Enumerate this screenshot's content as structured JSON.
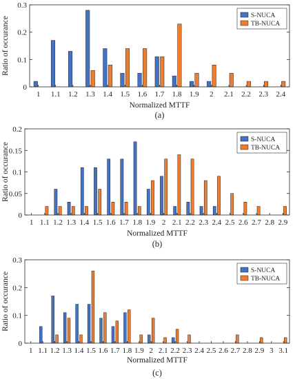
{
  "colors": {
    "s_nuca": "#4472C4",
    "tb_nuca": "#ED7D31",
    "axis": "#262626",
    "bar_edge": "#1f1f1f"
  },
  "chart_data": [
    {
      "type": "bar",
      "caption": "(a)",
      "xlabel": "Normalized MTTF",
      "ylabel": "Ratio of occurance",
      "ylim": [
        0,
        0.3
      ],
      "yticks": [
        "0",
        "0.1",
        "0.2",
        "0.3"
      ],
      "legend_position": "top-right",
      "categories": [
        "1",
        "1.1",
        "1.2",
        "1.3",
        "1.4",
        "1.5",
        "1.6",
        "1.7",
        "1.8",
        "1.9",
        "2",
        "2.1",
        "2.2",
        "2.3",
        "2.4"
      ],
      "series": [
        {
          "name": "S-NUCA",
          "values": [
            0.02,
            0.17,
            0.13,
            0.28,
            0.14,
            0.05,
            0.05,
            0.11,
            0.04,
            0.02,
            0.02,
            0,
            0,
            0,
            0
          ]
        },
        {
          "name": "TB-NUCA",
          "values": [
            0,
            0,
            0,
            0.06,
            0.08,
            0.14,
            0.14,
            0.11,
            0.23,
            0.05,
            0.08,
            0.05,
            0.02,
            0.02,
            0.02
          ]
        }
      ]
    },
    {
      "type": "bar",
      "caption": "(b)",
      "xlabel": "Normalized MTTF",
      "ylabel": "Ratio of occurance",
      "ylim": [
        0,
        0.2
      ],
      "yticks": [
        "0",
        "0.05",
        "0.1",
        "0.15",
        "0.2"
      ],
      "legend_position": "top-right",
      "categories": [
        "1",
        "1.1",
        "1.2",
        "1.3",
        "1.4",
        "1.5",
        "1.6",
        "1.7",
        "1.8",
        "1.9",
        "2",
        "2.1",
        "2.2",
        "2.3",
        "2.4",
        "2.5",
        "2.6",
        "2.7",
        "2.8",
        "2.9"
      ],
      "series": [
        {
          "name": "S-NUCA",
          "values": [
            0,
            0,
            0.06,
            0.03,
            0.11,
            0.11,
            0.13,
            0.13,
            0.17,
            0.06,
            0.09,
            0.02,
            0.03,
            0.02,
            0.02,
            0,
            0,
            0,
            0,
            0
          ]
        },
        {
          "name": "TB-NUCA",
          "values": [
            0,
            0.02,
            0.02,
            0.02,
            0.02,
            0.06,
            0.03,
            0.03,
            0.02,
            0.08,
            0.13,
            0.14,
            0.13,
            0.08,
            0.09,
            0.05,
            0.03,
            0.02,
            0,
            0.02
          ]
        }
      ]
    },
    {
      "type": "bar",
      "caption": "(c)",
      "xlabel": "Normalized MTTF",
      "ylabel": "Ratio of occurance",
      "ylim": [
        0,
        0.3
      ],
      "yticks": [
        "0",
        "0.1",
        "0.2",
        "0.3"
      ],
      "legend_position": "top-right",
      "categories": [
        "1",
        "1.1",
        "1.2",
        "1.3",
        "1.4",
        "1.5",
        "1.6",
        "1.7",
        "1.8",
        "1.9",
        "2",
        "2.1",
        "2.2",
        "2.3",
        "2.4",
        "2.5",
        "2.6",
        "2.7",
        "2.8",
        "2.9",
        "3",
        "3.1"
      ],
      "series": [
        {
          "name": "S-NUCA",
          "values": [
            0,
            0.06,
            0.17,
            0.11,
            0.14,
            0.14,
            0.09,
            0.06,
            0.11,
            0,
            0.03,
            0,
            0.02,
            0,
            0,
            0,
            0,
            0,
            0,
            0,
            0,
            0
          ]
        },
        {
          "name": "TB-NUCA",
          "values": [
            0,
            0,
            0.03,
            0.09,
            0.03,
            0.26,
            0.11,
            0.08,
            0.12,
            0.03,
            0.09,
            0.02,
            0.05,
            0.03,
            0,
            0,
            0,
            0.03,
            0,
            0.02,
            0,
            0.02
          ]
        }
      ]
    }
  ]
}
